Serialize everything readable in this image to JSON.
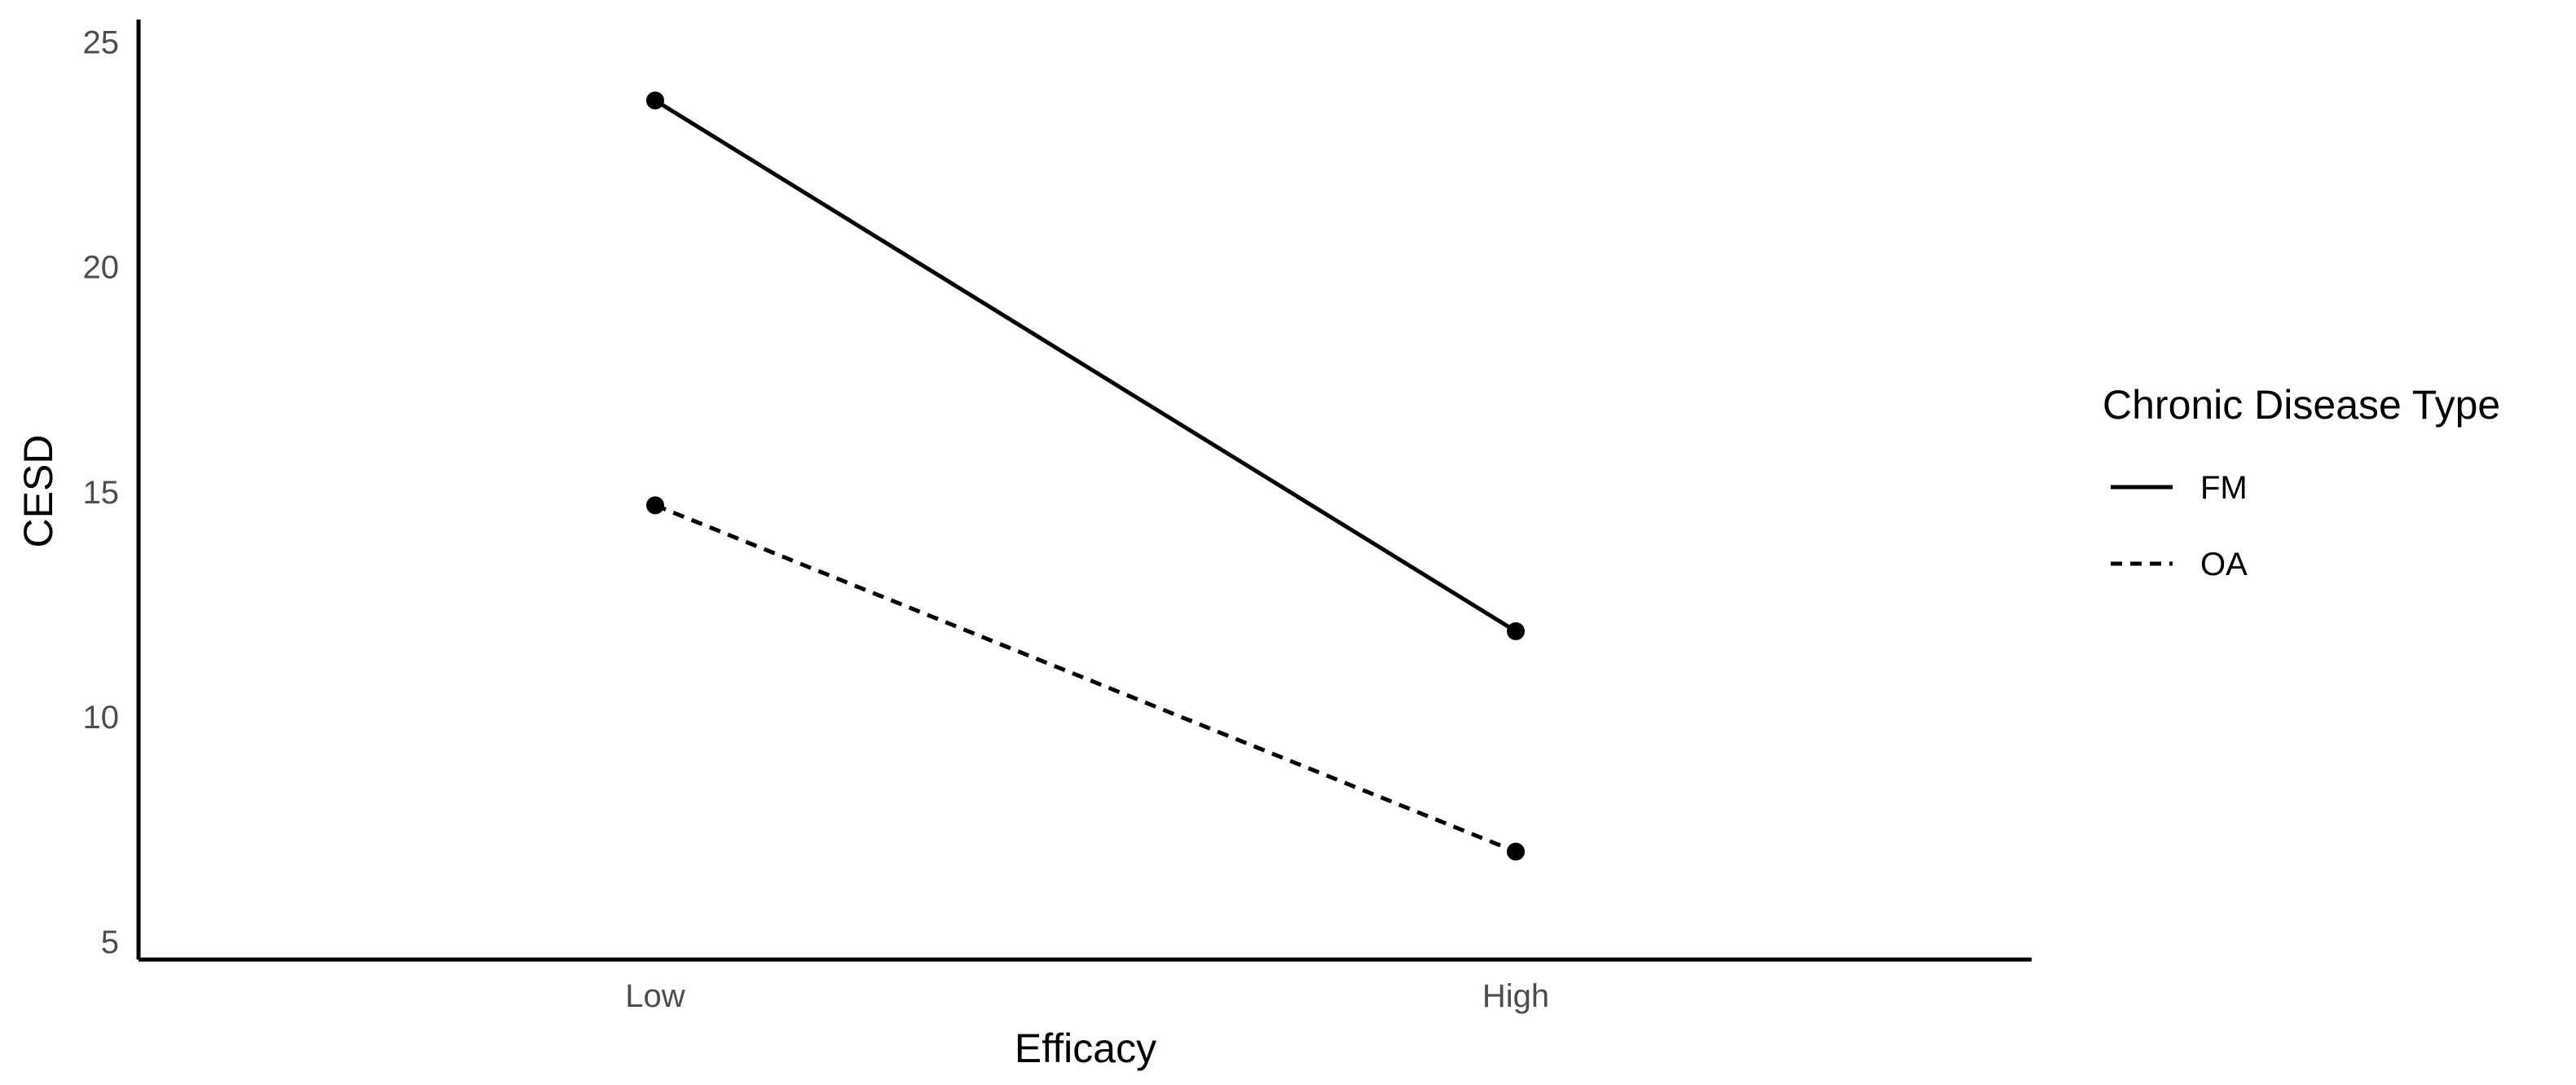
{
  "chart_data": {
    "type": "line",
    "title": "",
    "xlabel": "Efficacy",
    "ylabel": "CESD",
    "categories": [
      "Low",
      "High"
    ],
    "yticks": [
      5,
      10,
      15,
      20,
      25
    ],
    "ylim": [
      4.6,
      25.5
    ],
    "grid": false,
    "legend": {
      "title": "Chronic Disease Type",
      "placement": "right"
    },
    "series": [
      {
        "name": "FM",
        "values": [
          23.7,
          11.9
        ],
        "line_style": "solid",
        "color": "#000000"
      },
      {
        "name": "OA",
        "values": [
          14.7,
          7.0
        ],
        "line_style": "dashed",
        "color": "#000000"
      }
    ]
  }
}
